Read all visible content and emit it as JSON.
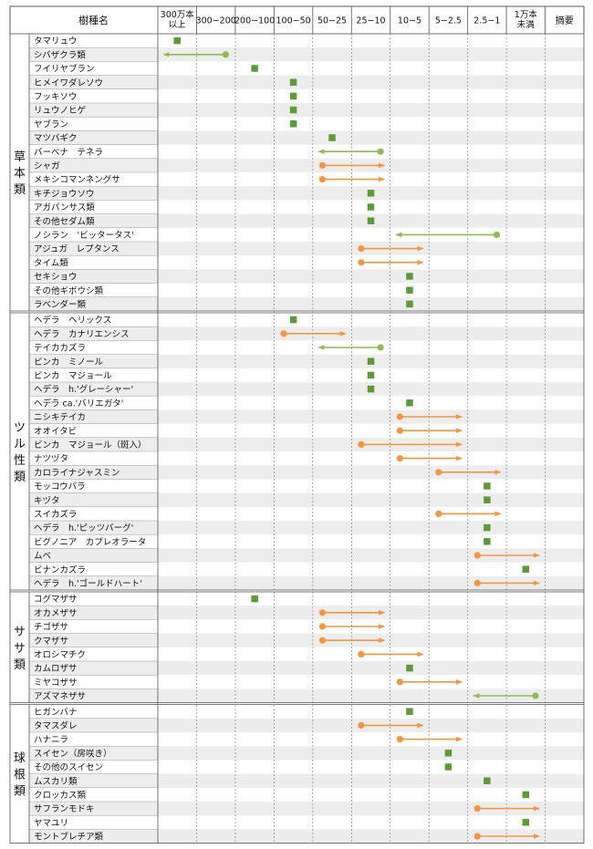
{
  "chart_data": {
    "type": "table",
    "header": {
      "name_col": "樹種名",
      "summary_col": "摘要",
      "columns": [
        [
          "300万本",
          "以上"
        ],
        [
          "300−200"
        ],
        [
          "200−100"
        ],
        [
          "100−50"
        ],
        [
          "50−25"
        ],
        [
          "25−10"
        ],
        [
          "10−5"
        ],
        [
          "5−2.5"
        ],
        [
          "2.5−1"
        ],
        [
          "1万本",
          "未満"
        ]
      ]
    },
    "colors": {
      "square": "#5e9a3a",
      "green_arrow": "#8fbb52",
      "orange_arrow": "#f39643",
      "grid": "#555555",
      "stripe": "#ededed"
    },
    "groups": [
      {
        "label": "草本類",
        "rows": [
          {
            "name": "タマリュウ",
            "mark": "square",
            "col": 1
          },
          {
            "name": "シバザクラ類",
            "mark": "green_arrow",
            "from": 2,
            "to": 1
          },
          {
            "name": "フイリヤブラン",
            "mark": "square",
            "col": 3
          },
          {
            "name": "ヒメイワダレソウ",
            "mark": "square",
            "col": 4
          },
          {
            "name": "フッキソウ",
            "mark": "square",
            "col": 4
          },
          {
            "name": "リュウノヒゲ",
            "mark": "square",
            "col": 4
          },
          {
            "name": "ヤブラン",
            "mark": "square",
            "col": 4
          },
          {
            "name": "マツバギク",
            "mark": "square",
            "col": 5
          },
          {
            "name": "バーベナ　テネラ",
            "mark": "green_arrow",
            "from": 6,
            "to": 5
          },
          {
            "name": "シャガ",
            "mark": "orange_arrow",
            "from": 5,
            "to": 6
          },
          {
            "name": "メキシコマンネングサ",
            "mark": "orange_arrow",
            "from": 5,
            "to": 6
          },
          {
            "name": "キチジョウソウ",
            "mark": "square",
            "col": 6
          },
          {
            "name": "アガパンサス類",
            "mark": "square",
            "col": 6
          },
          {
            "name": "その他セダム類",
            "mark": "square",
            "col": 6
          },
          {
            "name": "ノシラン　'ビッタータス'",
            "mark": "green_arrow",
            "from": 9,
            "to": 7
          },
          {
            "name": "アジュガ　レプタンス",
            "mark": "orange_arrow",
            "from": 6,
            "to": 7
          },
          {
            "name": "タイム類",
            "mark": "orange_arrow",
            "from": 6,
            "to": 7
          },
          {
            "name": "セキショウ",
            "mark": "square",
            "col": 7
          },
          {
            "name": "その他ギボウシ類",
            "mark": "square",
            "col": 7
          },
          {
            "name": "ラベンダー類",
            "mark": "square",
            "col": 7
          }
        ]
      },
      {
        "label": "ツル性類",
        "rows": [
          {
            "name": "ヘデラ　ヘリックス",
            "mark": "square",
            "col": 4
          },
          {
            "name": "ヘデラ　カナリエンシス",
            "mark": "orange_arrow",
            "from": 4,
            "to": 5
          },
          {
            "name": "テイカカズラ",
            "mark": "green_arrow",
            "from": 6,
            "to": 5
          },
          {
            "name": "ビンカ　ミノール",
            "mark": "square",
            "col": 6
          },
          {
            "name": "ビンカ　マジョール",
            "mark": "square",
            "col": 6
          },
          {
            "name": "ヘデラ　h.'グレーシャー'",
            "mark": "square",
            "col": 6
          },
          {
            "name": "ヘデラ ca.'バリエガタ'",
            "mark": "square",
            "col": 7
          },
          {
            "name": "ニシキテイカ",
            "mark": "orange_arrow",
            "from": 7,
            "to": 8
          },
          {
            "name": "オオイタビ",
            "mark": "orange_arrow",
            "from": 7,
            "to": 8
          },
          {
            "name": "ビンカ　マジョール（斑入）",
            "mark": "orange_arrow",
            "from": 6,
            "to": 8
          },
          {
            "name": "ナツヅタ",
            "mark": "orange_arrow",
            "from": 7,
            "to": 8
          },
          {
            "name": "カロライナジャスミン",
            "mark": "orange_arrow",
            "from": 8,
            "to": 9
          },
          {
            "name": "モッコウバラ",
            "mark": "square",
            "col": 9
          },
          {
            "name": "キヅタ",
            "mark": "square",
            "col": 9
          },
          {
            "name": "スイカズラ",
            "mark": "orange_arrow",
            "from": 8,
            "to": 9
          },
          {
            "name": "ヘデラ　h.'ピッツバーグ'",
            "mark": "square",
            "col": 9
          },
          {
            "name": "ビグノニア　カプレオラータ",
            "mark": "square",
            "col": 9
          },
          {
            "name": "ムベ",
            "mark": "orange_arrow",
            "from": 9,
            "to": 10
          },
          {
            "name": "ビナンカズラ",
            "mark": "square",
            "col": 10
          },
          {
            "name": "ヘデラ　h.'ゴールドハート'",
            "mark": "orange_arrow",
            "from": 9,
            "to": 10
          }
        ]
      },
      {
        "label": "ササ類",
        "rows": [
          {
            "name": "コグマザサ",
            "mark": "square",
            "col": 3
          },
          {
            "name": "オカメザサ",
            "mark": "orange_arrow",
            "from": 5,
            "to": 6
          },
          {
            "name": "チゴザサ",
            "mark": "orange_arrow",
            "from": 5,
            "to": 6
          },
          {
            "name": "クマザサ",
            "mark": "orange_arrow",
            "from": 5,
            "to": 6
          },
          {
            "name": "オロシマチク",
            "mark": "orange_arrow",
            "from": 6,
            "to": 7
          },
          {
            "name": "カムロザサ",
            "mark": "square",
            "col": 7
          },
          {
            "name": "ミヤコザサ",
            "mark": "orange_arrow",
            "from": 7,
            "to": 8
          },
          {
            "name": "アズマネザサ",
            "mark": "green_arrow",
            "from": 10,
            "to": 9
          }
        ]
      },
      {
        "label": "球根類",
        "rows": [
          {
            "name": "ヒガンバナ",
            "mark": "square",
            "col": 7
          },
          {
            "name": "タマスダレ",
            "mark": "orange_arrow",
            "from": 6,
            "to": 7
          },
          {
            "name": "ハナニラ",
            "mark": "orange_arrow",
            "from": 7,
            "to": 8
          },
          {
            "name": "スイセン（房咲き）",
            "mark": "square",
            "col": 8
          },
          {
            "name": "その他のスイセン",
            "mark": "square",
            "col": 8
          },
          {
            "name": "ムスカリ類",
            "mark": "square",
            "col": 9
          },
          {
            "name": "クロッカス類",
            "mark": "square",
            "col": 10
          },
          {
            "name": "サフランモドキ",
            "mark": "orange_arrow",
            "from": 9,
            "to": 10
          },
          {
            "name": "ヤマユリ",
            "mark": "square",
            "col": 10
          },
          {
            "name": "モントブレチア類",
            "mark": "orange_arrow",
            "from": 9,
            "to": 10
          }
        ]
      }
    ]
  }
}
